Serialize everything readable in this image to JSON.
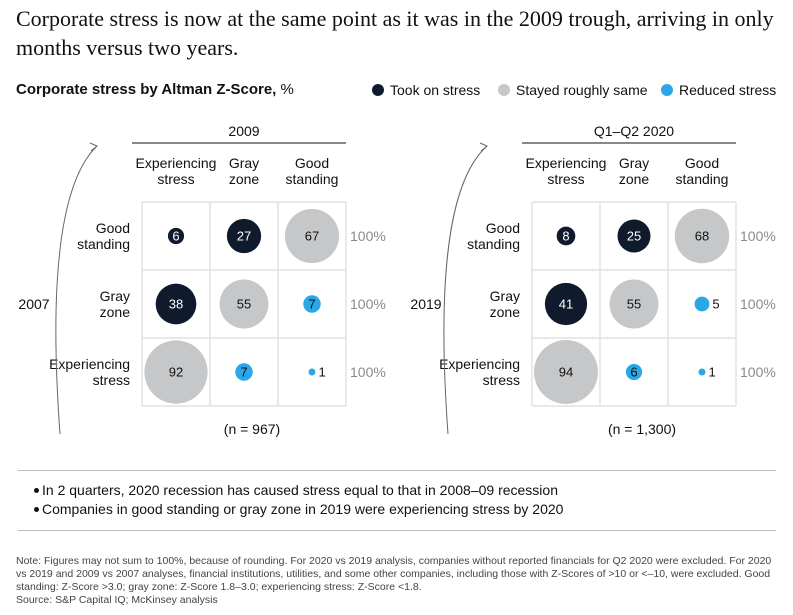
{
  "headline": "Corporate stress is now at the same point as it was in the 2009 trough, arriving in only months versus two years.",
  "subtitle": {
    "main": "Corporate stress by Altman Z-Score,",
    "unit": " %"
  },
  "legend": [
    {
      "label": "Took on stress",
      "color": "#0f1b2d"
    },
    {
      "label": "Stayed roughly same",
      "color": "#c5c7c9"
    },
    {
      "label": "Reduced stress",
      "color": "#2ba7e8"
    }
  ],
  "colors": {
    "took": "#0f1b2d",
    "same": "#c5c7c9",
    "reduced": "#2ba7e8",
    "grid": "#e2e2e2",
    "gray_text": "#8a8a8a"
  },
  "chart_data": [
    {
      "type": "bubble-matrix",
      "title": "2009",
      "row_axis_label": "2007",
      "columns": [
        "Experiencing stress",
        "Gray zone",
        "Good standing"
      ],
      "rows": [
        "Good standing",
        "Gray zone",
        "Experiencing stress"
      ],
      "values": [
        [
          6,
          27,
          67
        ],
        [
          38,
          55,
          7
        ],
        [
          92,
          7,
          1
        ]
      ],
      "categories": [
        [
          "took",
          "took",
          "same"
        ],
        [
          "took",
          "same",
          "reduced"
        ],
        [
          "same",
          "reduced",
          "reduced"
        ]
      ],
      "row_totals": [
        "100%",
        "100%",
        "100%"
      ],
      "n_label": "(n = 967)"
    },
    {
      "type": "bubble-matrix",
      "title": "Q1–Q2 2020",
      "row_axis_label": "2019",
      "columns": [
        "Experiencing stress",
        "Gray zone",
        "Good standing"
      ],
      "rows": [
        "Good standing",
        "Gray zone",
        "Experiencing stress"
      ],
      "values": [
        [
          8,
          25,
          68
        ],
        [
          41,
          55,
          5
        ],
        [
          94,
          6,
          1
        ]
      ],
      "categories": [
        [
          "took",
          "took",
          "same"
        ],
        [
          "took",
          "same",
          "reduced"
        ],
        [
          "same",
          "reduced",
          "reduced"
        ]
      ],
      "row_totals": [
        "100%",
        "100%",
        "100%"
      ],
      "n_label": "(n = 1,300)"
    }
  ],
  "bullets": [
    "In 2 quarters, 2020 recession has caused stress equal to that in 2008–09 recession",
    "Companies in good standing or gray zone in 2019 were experiencing stress by 2020"
  ],
  "note": "Note: Figures may not sum to 100%, because of rounding. For 2020 vs 2019 analysis, companies without reported financials for Q2 2020 were excluded. For 2020 vs 2019 and 2009 vs 2007 analyses, financial institutions, utilities, and some other companies, including those with Z-Scores of >10 or <–10, were excluded. Good standing: Z-Score >3.0; gray zone: Z-Score 1.8–3.0; experiencing stress: Z-Score <1.8.",
  "source": "Source: S&P Capital IQ; McKinsey analysis"
}
